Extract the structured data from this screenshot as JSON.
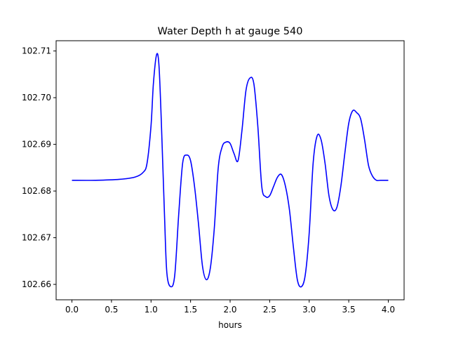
{
  "chart_data": {
    "type": "line",
    "title": "Water Depth h at gauge 540",
    "xlabel": "hours",
    "ylabel": "",
    "xlim": [
      -0.2,
      4.2
    ],
    "ylim": [
      102.6567,
      102.7122
    ],
    "xticks": [
      0.0,
      0.5,
      1.0,
      1.5,
      2.0,
      2.5,
      3.0,
      3.5,
      4.0
    ],
    "xtick_labels": [
      "0.0",
      "0.5",
      "1.0",
      "1.5",
      "2.0",
      "2.5",
      "3.0",
      "3.5",
      "4.0"
    ],
    "yticks": [
      102.66,
      102.67,
      102.68,
      102.69,
      102.7,
      102.71
    ],
    "ytick_labels": [
      "102.66",
      "102.67",
      "102.68",
      "102.69",
      "102.70",
      "102.71"
    ],
    "grid": false,
    "series": [
      {
        "color": "#0000ff",
        "x": [
          0.0,
          0.3,
          0.6,
          0.8,
          0.9,
          0.95,
          1.0,
          1.03,
          1.07,
          1.1,
          1.13,
          1.17,
          1.2,
          1.25,
          1.3,
          1.35,
          1.4,
          1.45,
          1.5,
          1.55,
          1.6,
          1.65,
          1.7,
          1.75,
          1.8,
          1.85,
          1.9,
          1.95,
          2.0,
          2.05,
          2.1,
          2.15,
          2.2,
          2.25,
          2.3,
          2.35,
          2.4,
          2.45,
          2.5,
          2.55,
          2.6,
          2.65,
          2.7,
          2.75,
          2.8,
          2.85,
          2.9,
          2.95,
          3.0,
          3.05,
          3.1,
          3.15,
          3.2,
          3.25,
          3.3,
          3.35,
          3.4,
          3.45,
          3.5,
          3.55,
          3.6,
          3.65,
          3.7,
          3.75,
          3.8,
          3.85,
          3.9,
          3.95,
          4.0
        ],
        "y": [
          102.6823,
          102.6823,
          102.6825,
          102.683,
          102.684,
          102.686,
          102.694,
          102.703,
          102.7092,
          102.707,
          102.695,
          102.675,
          102.6625,
          102.6595,
          102.662,
          102.675,
          102.686,
          102.6877,
          102.6865,
          102.681,
          102.673,
          102.664,
          102.661,
          102.6635,
          102.672,
          102.685,
          102.6895,
          102.6905,
          102.6902,
          102.688,
          102.6865,
          102.693,
          102.7015,
          102.7042,
          102.703,
          102.694,
          102.681,
          102.6788,
          102.679,
          102.681,
          102.683,
          102.6835,
          102.681,
          102.676,
          102.668,
          102.661,
          102.6595,
          102.662,
          102.671,
          102.686,
          102.6918,
          102.691,
          102.686,
          102.679,
          102.676,
          102.6765,
          102.681,
          102.688,
          102.6945,
          102.6972,
          102.6968,
          102.6955,
          102.691,
          102.6855,
          102.6832,
          102.6823,
          102.6823,
          102.6823,
          102.6823
        ]
      }
    ]
  }
}
